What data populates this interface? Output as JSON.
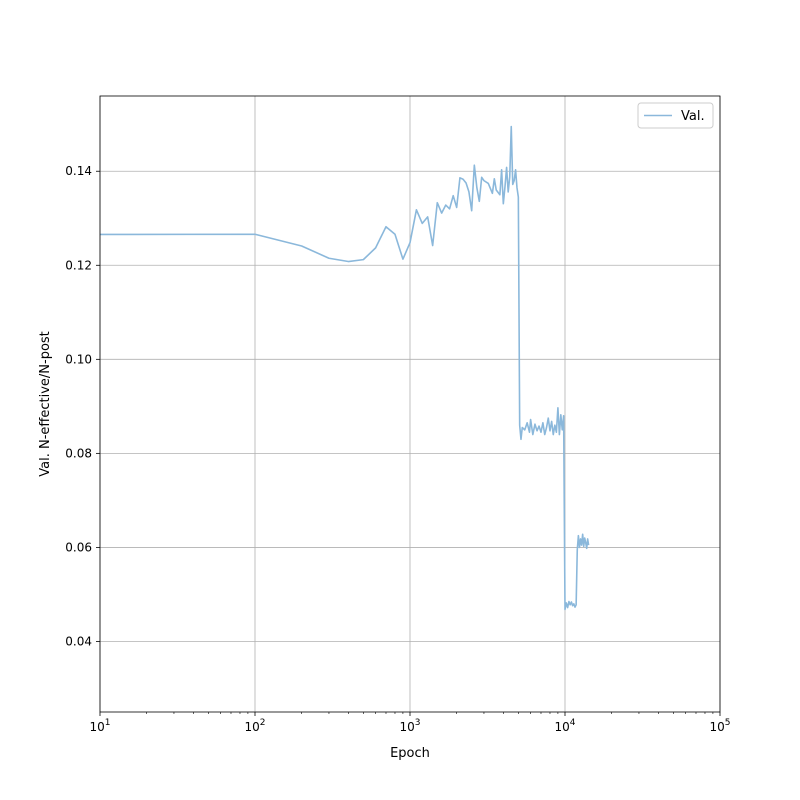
{
  "chart_data": {
    "type": "line",
    "xlabel": "Epoch",
    "ylabel": "Val. N-effective/N-post",
    "xscale": "log",
    "xlim": [
      10,
      100000
    ],
    "ylim": [
      0.025,
      0.156
    ],
    "x_ticks": [
      {
        "base": "10",
        "exp": "1",
        "value": 10
      },
      {
        "base": "10",
        "exp": "2",
        "value": 100
      },
      {
        "base": "10",
        "exp": "3",
        "value": 1000
      },
      {
        "base": "10",
        "exp": "4",
        "value": 10000
      },
      {
        "base": "10",
        "exp": "5",
        "value": 100000
      }
    ],
    "y_ticks": [
      {
        "label": "0.04",
        "value": 0.04
      },
      {
        "label": "0.06",
        "value": 0.06
      },
      {
        "label": "0.08",
        "value": 0.08
      },
      {
        "label": "0.10",
        "value": 0.1
      },
      {
        "label": "0.12",
        "value": 0.12
      },
      {
        "label": "0.14",
        "value": 0.14
      }
    ],
    "grid": true,
    "legend_position": "top-right",
    "series": [
      {
        "name": "Val.",
        "color": "#8bb8db",
        "points": [
          [
            1,
            0.1265
          ],
          [
            100,
            0.1266
          ],
          [
            200,
            0.1241
          ],
          [
            300,
            0.1215
          ],
          [
            400,
            0.1208
          ],
          [
            500,
            0.1212
          ],
          [
            600,
            0.1237
          ],
          [
            700,
            0.1282
          ],
          [
            800,
            0.1266
          ],
          [
            900,
            0.1213
          ],
          [
            1000,
            0.1248
          ],
          [
            1100,
            0.1318
          ],
          [
            1200,
            0.1289
          ],
          [
            1300,
            0.1303
          ],
          [
            1400,
            0.1242
          ],
          [
            1500,
            0.1333
          ],
          [
            1600,
            0.1311
          ],
          [
            1700,
            0.1328
          ],
          [
            1800,
            0.132
          ],
          [
            1900,
            0.1348
          ],
          [
            2000,
            0.1323
          ],
          [
            2100,
            0.1386
          ],
          [
            2200,
            0.1383
          ],
          [
            2300,
            0.1375
          ],
          [
            2400,
            0.1356
          ],
          [
            2500,
            0.1316
          ],
          [
            2600,
            0.1413
          ],
          [
            2700,
            0.1365
          ],
          [
            2800,
            0.1336
          ],
          [
            2900,
            0.1387
          ],
          [
            3000,
            0.138
          ],
          [
            3200,
            0.1374
          ],
          [
            3400,
            0.1353
          ],
          [
            3500,
            0.1384
          ],
          [
            3600,
            0.136
          ],
          [
            3800,
            0.135
          ],
          [
            3900,
            0.1403
          ],
          [
            4000,
            0.1331
          ],
          [
            4100,
            0.1367
          ],
          [
            4200,
            0.1408
          ],
          [
            4300,
            0.1356
          ],
          [
            4400,
            0.1388
          ],
          [
            4500,
            0.1495
          ],
          [
            4600,
            0.1372
          ],
          [
            4700,
            0.138
          ],
          [
            4800,
            0.1403
          ],
          [
            4900,
            0.1365
          ],
          [
            5000,
            0.1345
          ],
          [
            5100,
            0.086
          ],
          [
            5200,
            0.083
          ],
          [
            5300,
            0.0855
          ],
          [
            5500,
            0.085
          ],
          [
            5700,
            0.0865
          ],
          [
            5900,
            0.0845
          ],
          [
            6000,
            0.0872
          ],
          [
            6200,
            0.084
          ],
          [
            6400,
            0.0862
          ],
          [
            6600,
            0.0848
          ],
          [
            6800,
            0.0858
          ],
          [
            7000,
            0.0845
          ],
          [
            7200,
            0.0865
          ],
          [
            7400,
            0.084
          ],
          [
            7600,
            0.0855
          ],
          [
            7800,
            0.0875
          ],
          [
            8000,
            0.0848
          ],
          [
            8200,
            0.0868
          ],
          [
            8400,
            0.084
          ],
          [
            8600,
            0.086
          ],
          [
            8800,
            0.0845
          ],
          [
            9000,
            0.0897
          ],
          [
            9200,
            0.084
          ],
          [
            9400,
            0.0882
          ],
          [
            9600,
            0.085
          ],
          [
            9800,
            0.088
          ],
          [
            10000,
            0.0468
          ],
          [
            10200,
            0.0482
          ],
          [
            10400,
            0.0472
          ],
          [
            10600,
            0.0485
          ],
          [
            10800,
            0.0478
          ],
          [
            11000,
            0.0484
          ],
          [
            11200,
            0.0476
          ],
          [
            11400,
            0.048
          ],
          [
            11600,
            0.0473
          ],
          [
            11800,
            0.0478
          ],
          [
            12000,
            0.0595
          ],
          [
            12200,
            0.0625
          ],
          [
            12400,
            0.06
          ],
          [
            12600,
            0.0618
          ],
          [
            12800,
            0.0605
          ],
          [
            13000,
            0.0628
          ],
          [
            13200,
            0.0602
          ],
          [
            13400,
            0.062
          ],
          [
            13600,
            0.061
          ],
          [
            13800,
            0.0598
          ],
          [
            14000,
            0.0618
          ],
          [
            14200,
            0.0605
          ]
        ]
      }
    ]
  }
}
